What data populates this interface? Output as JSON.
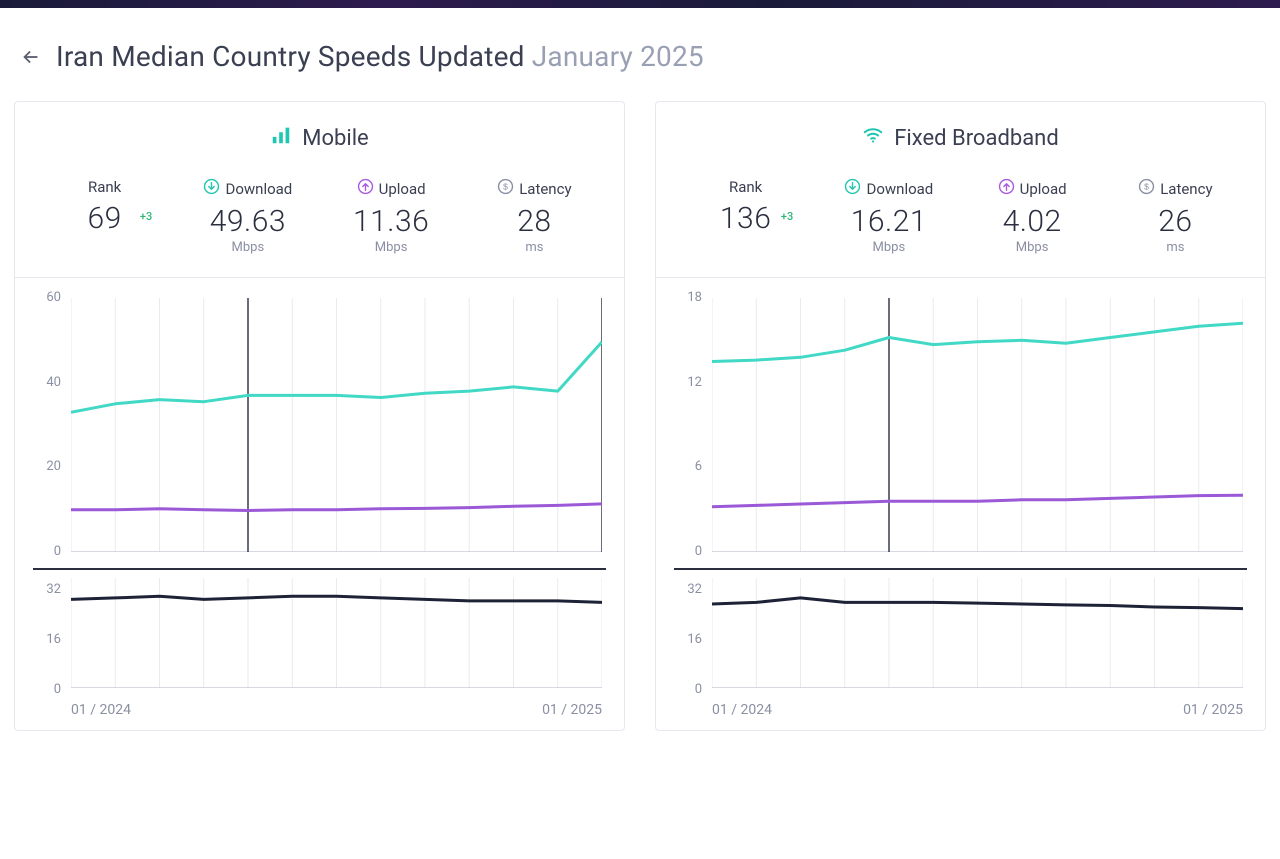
{
  "header": {
    "title_main": "Iran Median Country Speeds Updated ",
    "title_date": "January 2025"
  },
  "x_axis": {
    "start_label": "01 / 2024",
    "end_label": "01 / 2025",
    "n_points": 13
  },
  "colors": {
    "download_line": "#41d9c5",
    "upload_line": "#9b59d8",
    "latency_line": "#1e2236",
    "grid": "#e8eaf0",
    "baseline": "#c9ccd8",
    "vline": "#2a2e3f",
    "download_icon": "#1fc6b0",
    "upload_icon": "#a85ae0",
    "latency_icon": "#8a8fa3",
    "rank_delta": "#2bb673",
    "title_text": "#3a3f51",
    "value_text": "#2a2e3f",
    "muted_text": "#8a8fa3",
    "card_border": "#e6e8ef",
    "background": "#ffffff"
  },
  "cards": [
    {
      "id": "mobile",
      "title": "Mobile",
      "icon": "bars",
      "rank": {
        "label": "Rank",
        "value": "69",
        "delta": "+3"
      },
      "download": {
        "label": "Download",
        "value": "49.63",
        "unit": "Mbps"
      },
      "upload": {
        "label": "Upload",
        "value": "11.36",
        "unit": "Mbps"
      },
      "latency": {
        "label": "Latency",
        "value": "28",
        "unit": "ms"
      },
      "main_chart": {
        "type": "line",
        "ylim": [
          0,
          60
        ],
        "yticks": [
          0,
          20,
          40,
          60
        ],
        "vlines_at": [
          4,
          12
        ],
        "series": {
          "download": [
            33,
            35,
            36,
            35.5,
            37,
            37,
            37,
            36.5,
            37.5,
            38,
            39,
            38,
            49.63
          ],
          "upload": [
            10,
            10,
            10.2,
            10,
            9.8,
            10,
            10,
            10.2,
            10.3,
            10.5,
            10.8,
            11,
            11.36
          ]
        },
        "line_width": 3
      },
      "latency_chart": {
        "type": "line",
        "ylim": [
          0,
          36
        ],
        "yticks": [
          0,
          16,
          32
        ],
        "values": [
          29,
          29.5,
          30,
          29,
          29.5,
          30,
          30,
          29.5,
          29,
          28.5,
          28.5,
          28.5,
          28
        ],
        "line_width": 3
      }
    },
    {
      "id": "fixed",
      "title": "Fixed Broadband",
      "icon": "wifi",
      "rank": {
        "label": "Rank",
        "value": "136",
        "delta": "+3"
      },
      "download": {
        "label": "Download",
        "value": "16.21",
        "unit": "Mbps"
      },
      "upload": {
        "label": "Upload",
        "value": "4.02",
        "unit": "Mbps"
      },
      "latency": {
        "label": "Latency",
        "value": "26",
        "unit": "ms"
      },
      "main_chart": {
        "type": "line",
        "ylim": [
          0,
          18
        ],
        "yticks": [
          0,
          6,
          12,
          18
        ],
        "vlines_at": [
          4
        ],
        "series": {
          "download": [
            13.5,
            13.6,
            13.8,
            14.3,
            15.2,
            14.7,
            14.9,
            15,
            14.8,
            15.2,
            15.6,
            16,
            16.21
          ],
          "upload": [
            3.2,
            3.3,
            3.4,
            3.5,
            3.6,
            3.6,
            3.6,
            3.7,
            3.7,
            3.8,
            3.9,
            4.0,
            4.02
          ]
        },
        "line_width": 3
      },
      "latency_chart": {
        "type": "line",
        "ylim": [
          0,
          36
        ],
        "yticks": [
          0,
          16,
          32
        ],
        "values": [
          27.5,
          28,
          29.5,
          28,
          28,
          28,
          27.8,
          27.5,
          27.2,
          27,
          26.5,
          26.3,
          26
        ],
        "line_width": 3
      }
    }
  ]
}
